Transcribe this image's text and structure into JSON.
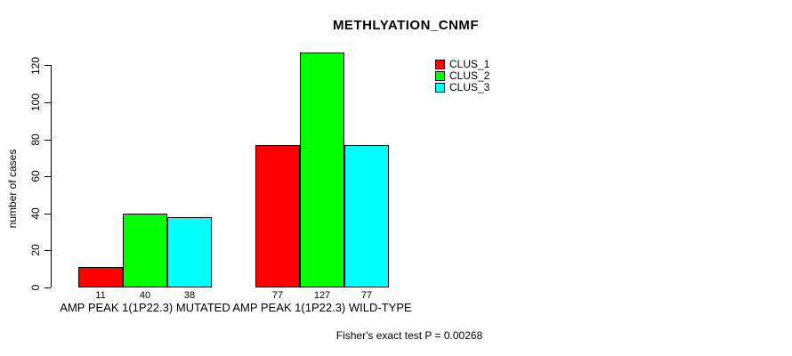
{
  "chart_data": {
    "type": "bar",
    "title": "METHLYATION_CNMF",
    "xlabel": "",
    "ylabel": "number of cases",
    "ylim": [
      0,
      120
    ],
    "yticks": [
      0,
      20,
      40,
      60,
      80,
      100,
      120
    ],
    "grid": false,
    "legend_position": "top-right-inside",
    "categories": [
      "AMP PEAK 1(1P22.3) MUTATED",
      "AMP PEAK 1(1P22.3) WILD-TYPE"
    ],
    "series": [
      {
        "name": "CLUS_1",
        "color": "#ff0000",
        "values": [
          11,
          77
        ]
      },
      {
        "name": "CLUS_2",
        "color": "#00ff00",
        "values": [
          40,
          127
        ]
      },
      {
        "name": "CLUS_3",
        "color": "#00ffff",
        "values": [
          38,
          77
        ]
      }
    ],
    "show_bar_values": true,
    "footnote": "Fisher's exact test P = 0.00268",
    "colors": {
      "background": "#ffffff",
      "axis": "#000000",
      "text": "#000000"
    }
  }
}
